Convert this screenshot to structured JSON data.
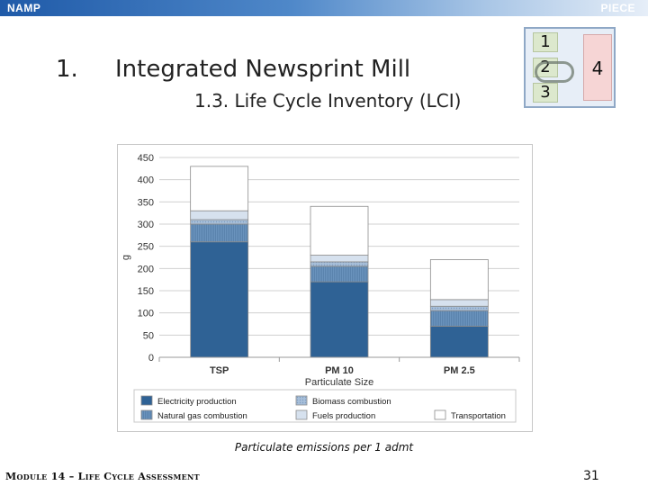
{
  "header": {
    "left": "NAMP",
    "right": "PIECE"
  },
  "slide": {
    "number": "1.",
    "title": "Integrated Newsprint Mill",
    "subtitle": "1.3. Life Cycle Inventory (LCI)"
  },
  "steps": {
    "items": [
      "1",
      "2",
      "3"
    ],
    "side": "4",
    "highlighted": "2"
  },
  "caption": "Particulate emissions per 1 admt",
  "footer": {
    "left": "Module 14 – Life Cycle Assessment",
    "page": "31"
  },
  "colors": {
    "electricity": "#2f6295",
    "natural_gas": "#6a93bd",
    "biomass": "#a7bfd9",
    "fuels": "#d6e1ee",
    "transportation": "#ffffff"
  },
  "chart_data": {
    "type": "bar",
    "stacked": true,
    "categories": [
      "TSP",
      "PM 10",
      "PM 2.5"
    ],
    "xlabel": "Particulate Size",
    "ylabel": "g",
    "ylim": [
      0,
      450
    ],
    "yticks": [
      0,
      50,
      100,
      150,
      200,
      250,
      300,
      350,
      400,
      450
    ],
    "grid": true,
    "legend_position": "bottom",
    "series": [
      {
        "name": "Electricity production",
        "color_key": "electricity",
        "values": [
          260,
          170,
          70
        ]
      },
      {
        "name": "Natural gas combustion",
        "color_key": "natural_gas",
        "values": [
          40,
          35,
          35
        ]
      },
      {
        "name": "Biomass combustion",
        "color_key": "biomass",
        "values": [
          10,
          10,
          10
        ]
      },
      {
        "name": "Fuels production",
        "color_key": "fuels",
        "values": [
          20,
          15,
          15
        ]
      },
      {
        "name": "Transportation",
        "color_key": "transportation",
        "values": [
          100,
          110,
          90
        ]
      }
    ]
  }
}
